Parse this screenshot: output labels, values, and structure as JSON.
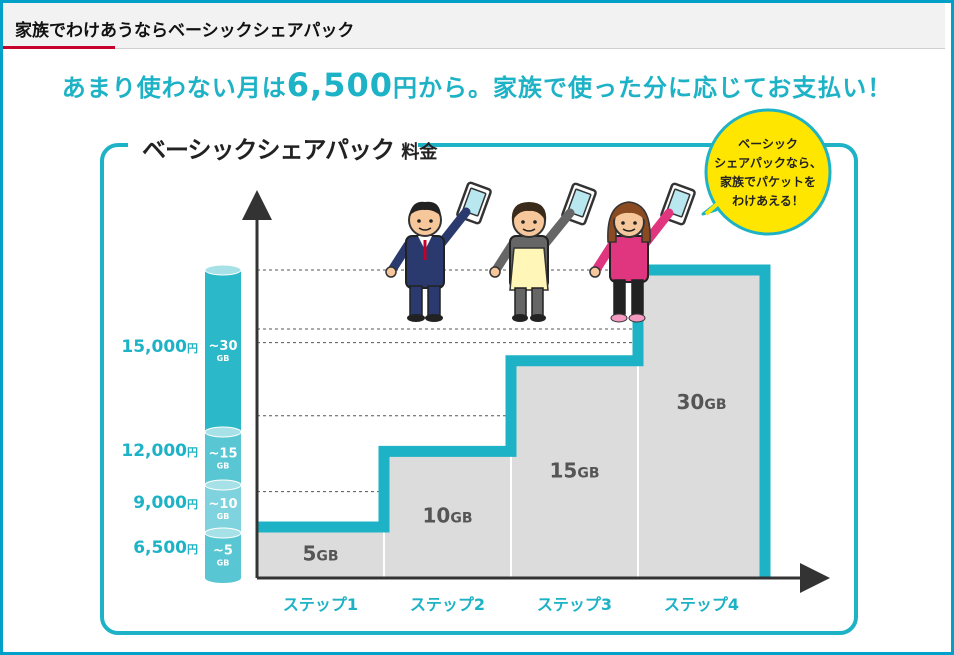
{
  "header": {
    "title": "家族でわけあうならベーシックシェアパック"
  },
  "headline": {
    "prefix": "あまり使わない月は",
    "price": "6,500",
    "suffix": "円から。家族で使った分に応じてお支払い！"
  },
  "panel": {
    "title": "ベーシックシェアパック",
    "title_suffix": "料金"
  },
  "speech_bubble": {
    "lines": [
      "ベーシック",
      "シェアパックなら、",
      "家族でパケットを",
      "わけあえる！"
    ]
  },
  "colors": {
    "accent": "#1db2c5",
    "header_accent": "#c4002b",
    "bubble": "#ffe600",
    "step_fill": "#dcdcdc"
  },
  "chart_data": {
    "type": "area",
    "categories": [
      "ステップ1",
      "ステップ2",
      "ステップ3",
      "ステップ4"
    ],
    "steps": [
      {
        "label": "ステップ1",
        "data": "5",
        "unit": "GB",
        "price": "6,500",
        "cap": "~5"
      },
      {
        "label": "ステップ2",
        "data": "10",
        "unit": "GB",
        "price": "9,000",
        "cap": "~10"
      },
      {
        "label": "ステップ3",
        "data": "15",
        "unit": "GB",
        "price": "12,000",
        "cap": "~15"
      },
      {
        "label": "ステップ4",
        "data": "30",
        "unit": "GB",
        "price": "15,000",
        "cap": "~30"
      }
    ],
    "values": [
      6500,
      9000,
      12000,
      15000
    ],
    "price_unit": "円",
    "cap_unit": "GB",
    "grid": true
  }
}
